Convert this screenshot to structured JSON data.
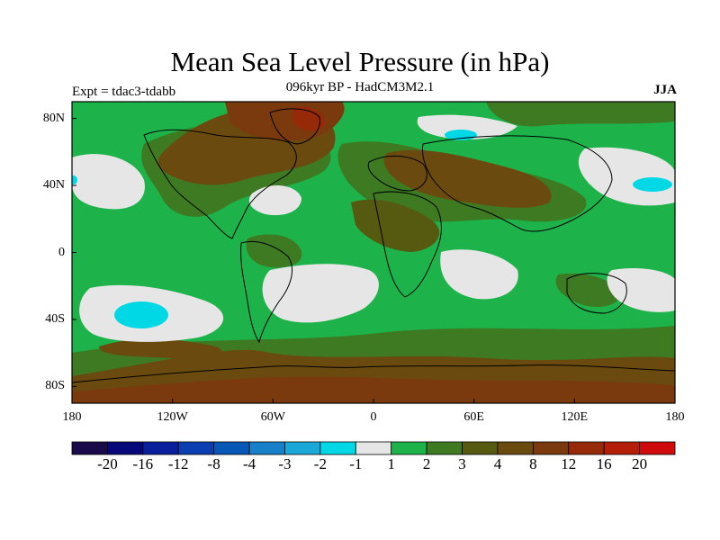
{
  "title": "Mean Sea Level Pressure (in hPa)",
  "subtitle": "096kyr BP - HadCM3M2.1",
  "experiment": "Expt = tdac3-tdabb",
  "season": "JJA",
  "map": {
    "projection": "cylindrical-equidistant",
    "lon_range": [
      -180,
      180
    ],
    "lat_range": [
      -90,
      90
    ],
    "x_ticks": [
      {
        "value": -180,
        "label": "180"
      },
      {
        "value": -120,
        "label": "120W"
      },
      {
        "value": -60,
        "label": "60W"
      },
      {
        "value": 0,
        "label": "0"
      },
      {
        "value": 60,
        "label": "60E"
      },
      {
        "value": 120,
        "label": "120E"
      },
      {
        "value": 180,
        "label": "180"
      }
    ],
    "y_ticks": [
      {
        "value": 80,
        "label": "80N"
      },
      {
        "value": 40,
        "label": "40N"
      },
      {
        "value": 0,
        "label": "0"
      },
      {
        "value": -40,
        "label": "40S"
      },
      {
        "value": -80,
        "label": "80S"
      }
    ]
  },
  "colorbar": {
    "colors": [
      "#1a0a4a",
      "#06087a",
      "#0a1f9c",
      "#0a3db0",
      "#0757b7",
      "#1780c8",
      "#1aa8d8",
      "#00d8e6",
      "#e6e6e6",
      "#1db34a",
      "#3d7a22",
      "#565a10",
      "#6b4a10",
      "#7a3a0e",
      "#962a08",
      "#b41e06",
      "#cf0a0a"
    ],
    "labels": [
      "-20",
      "-16",
      "-12",
      "-8",
      "-4",
      "-3",
      "-2",
      "-1",
      "1",
      "2",
      "3",
      "4",
      "8",
      "12",
      "16",
      "20"
    ]
  },
  "legend_fills": {
    "light": "#e6e6e6",
    "green": "#1db34a",
    "olive": "#3d7a22",
    "dark_olive": "#565a10",
    "brown": "#6b4a10",
    "dark_brown": "#7a3a0e",
    "red_brown": "#962a08",
    "cyan": "#00d8e6",
    "coast": "#000000"
  }
}
